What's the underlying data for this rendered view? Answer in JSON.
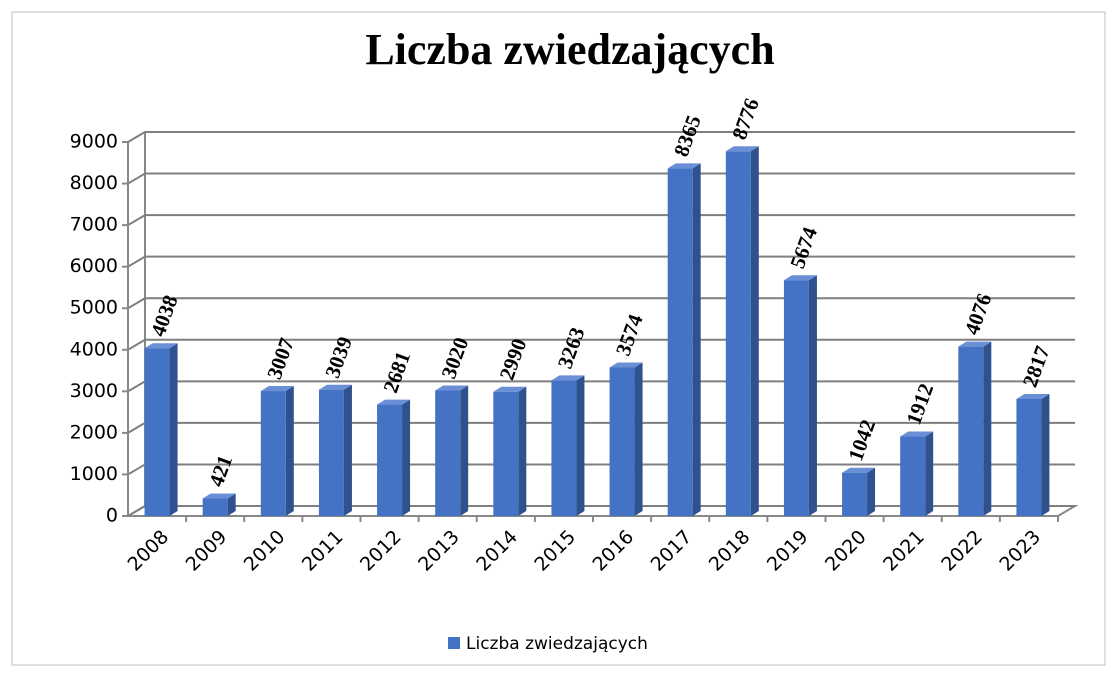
{
  "chart_data": {
    "type": "bar",
    "title": "Liczba zwiedzających",
    "categories": [
      "2008",
      "2009",
      "2010",
      "2011",
      "2012",
      "2013",
      "2014",
      "2015",
      "2016",
      "2017",
      "2018",
      "2019",
      "2020",
      "2021",
      "2022",
      "2023"
    ],
    "series": [
      {
        "name": "Liczba zwiedzających",
        "color": "#4472c4",
        "values": [
          4038,
          421,
          3007,
          3039,
          2681,
          3020,
          2990,
          3263,
          3574,
          8365,
          8776,
          5674,
          1042,
          1912,
          4076,
          2817
        ]
      }
    ],
    "ylim": [
      0,
      9000
    ],
    "yticks": [
      0,
      1000,
      2000,
      3000,
      4000,
      5000,
      6000,
      7000,
      8000,
      9000
    ],
    "grid": true,
    "legend": "bottom"
  }
}
